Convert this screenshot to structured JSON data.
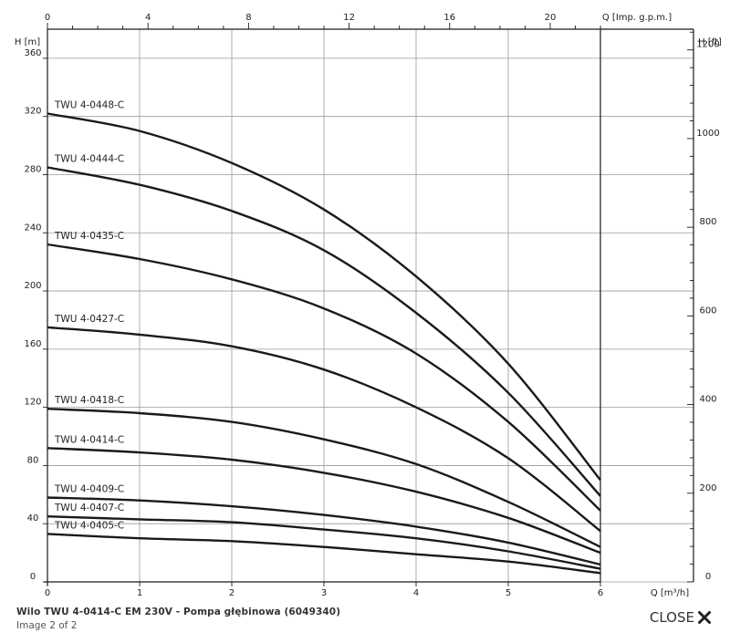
{
  "viewer": {
    "caption_title": "Wilo TWU 4-0414-C EM 230V - Pompa głębinowa (6049340)",
    "caption_counter": "Image 2 of 2",
    "close_label": "CLOSE",
    "close_icon": "close-icon"
  },
  "chart_data": {
    "type": "line",
    "title": "",
    "xlabel": "Q [m³/h]",
    "ylabel": "H [m]",
    "x2label": "Q [Imp. g.p.m.]",
    "y2label": "H [ft]",
    "xlim": [
      0,
      6
    ],
    "ylim": [
      0,
      380
    ],
    "x_ticks": [
      "0",
      "1",
      "2",
      "3",
      "4",
      "5",
      "6"
    ],
    "y_ticks": [
      "0",
      "40",
      "80",
      "120",
      "160",
      "200",
      "240",
      "280",
      "320",
      "360"
    ],
    "x2_ticks": [
      "0",
      "4",
      "8",
      "12",
      "16",
      "20"
    ],
    "y2_ticks": [
      "0",
      "200",
      "400",
      "600",
      "800",
      "1000",
      "1200"
    ],
    "grid": true,
    "series": [
      {
        "name": "TWU 4-0448-C",
        "x": [
          0,
          1,
          2,
          3,
          4,
          5,
          6
        ],
        "y": [
          322,
          310,
          288,
          256,
          210,
          150,
          70
        ]
      },
      {
        "name": "TWU 4-0444-C",
        "x": [
          0,
          1,
          2,
          3,
          4,
          5,
          6
        ],
        "y": [
          285,
          273,
          255,
          228,
          185,
          130,
          59
        ]
      },
      {
        "name": "TWU 4-0435-C",
        "x": [
          0,
          1,
          2,
          3,
          4,
          5,
          6
        ],
        "y": [
          232,
          222,
          208,
          188,
          157,
          110,
          49
        ]
      },
      {
        "name": "TWU 4-0427-C",
        "x": [
          0,
          1,
          2,
          3,
          4,
          5,
          6
        ],
        "y": [
          175,
          170,
          162,
          146,
          120,
          85,
          35
        ]
      },
      {
        "name": "TWU 4-0418-C",
        "x": [
          0,
          1,
          2,
          3,
          4,
          5,
          6
        ],
        "y": [
          119,
          116,
          110,
          98,
          81,
          55,
          24
        ]
      },
      {
        "name": "TWU 4-0414-C",
        "x": [
          0,
          1,
          2,
          3,
          4,
          5,
          6
        ],
        "y": [
          92,
          89,
          84,
          75,
          62,
          44,
          20
        ]
      },
      {
        "name": "TWU 4-0409-C",
        "x": [
          0,
          1,
          2,
          3,
          4,
          5,
          6
        ],
        "y": [
          58,
          56,
          52,
          46,
          38,
          27,
          12
        ]
      },
      {
        "name": "TWU 4-0407-C",
        "x": [
          0,
          1,
          2,
          3,
          4,
          5,
          6
        ],
        "y": [
          45,
          43,
          41,
          36,
          30,
          21,
          9
        ]
      },
      {
        "name": "TWU 4-0405-C",
        "x": [
          0,
          1,
          2,
          3,
          4,
          5,
          6
        ],
        "y": [
          33,
          30,
          28,
          24,
          19,
          14,
          6
        ]
      }
    ]
  }
}
